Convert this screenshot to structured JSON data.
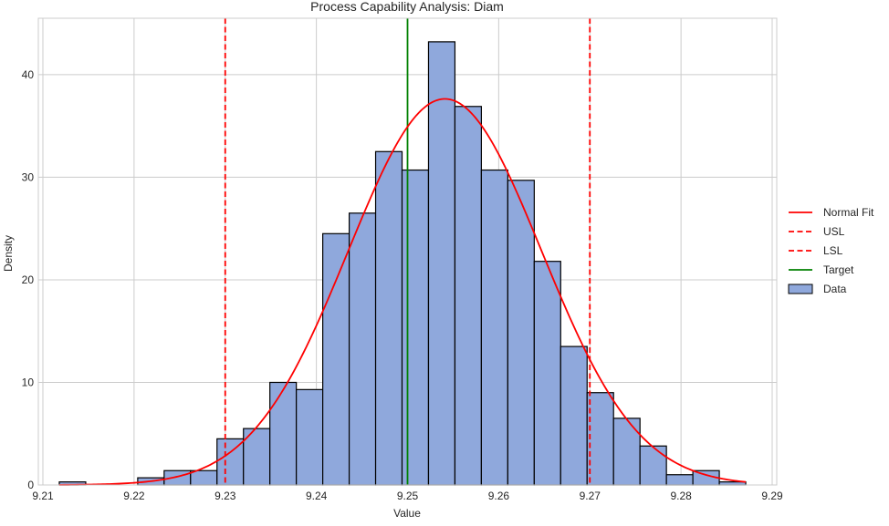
{
  "chart_data": {
    "type": "histogram",
    "title": "Process Capability Analysis: Diam",
    "xlabel": "Value",
    "ylabel": "Density",
    "xlim": [
      9.2095,
      9.2905
    ],
    "ylim": [
      0,
      45.5
    ],
    "xticks": [
      "9.21",
      "9.22",
      "9.23",
      "9.24",
      "9.25",
      "9.26",
      "9.27",
      "9.28",
      "9.29"
    ],
    "yticks": [
      "0",
      "10",
      "20",
      "30",
      "40"
    ],
    "grid": true,
    "legend_position": "right",
    "bins": [
      {
        "x0": 9.2118,
        "x1": 9.2147,
        "density": 0.3
      },
      {
        "x0": 9.2147,
        "x1": 9.2175,
        "density": 0
      },
      {
        "x0": 9.2175,
        "x1": 9.2204,
        "density": 0
      },
      {
        "x0": 9.2204,
        "x1": 9.2233,
        "density": 0.7
      },
      {
        "x0": 9.2233,
        "x1": 9.2262,
        "density": 1.4
      },
      {
        "x0": 9.2262,
        "x1": 9.2291,
        "density": 1.4
      },
      {
        "x0": 9.2291,
        "x1": 9.232,
        "density": 4.5
      },
      {
        "x0": 9.232,
        "x1": 9.2349,
        "density": 5.5
      },
      {
        "x0": 9.2349,
        "x1": 9.2378,
        "density": 10.0
      },
      {
        "x0": 9.2378,
        "x1": 9.2407,
        "density": 9.3
      },
      {
        "x0": 9.2407,
        "x1": 9.2436,
        "density": 24.5
      },
      {
        "x0": 9.2436,
        "x1": 9.2465,
        "density": 26.5
      },
      {
        "x0": 9.2465,
        "x1": 9.2494,
        "density": 32.5
      },
      {
        "x0": 9.2494,
        "x1": 9.2523,
        "density": 30.7
      },
      {
        "x0": 9.2523,
        "x1": 9.2552,
        "density": 43.2
      },
      {
        "x0": 9.2552,
        "x1": 9.2581,
        "density": 36.9
      },
      {
        "x0": 9.2581,
        "x1": 9.261,
        "density": 30.7
      },
      {
        "x0": 9.261,
        "x1": 9.2639,
        "density": 29.7
      },
      {
        "x0": 9.2639,
        "x1": 9.2668,
        "density": 21.8
      },
      {
        "x0": 9.2668,
        "x1": 9.2697,
        "density": 13.5
      },
      {
        "x0": 9.2697,
        "x1": 9.2726,
        "density": 9.0
      },
      {
        "x0": 9.2726,
        "x1": 9.2755,
        "density": 6.5
      },
      {
        "x0": 9.2755,
        "x1": 9.2784,
        "density": 3.8
      },
      {
        "x0": 9.2784,
        "x1": 9.2813,
        "density": 1.0
      },
      {
        "x0": 9.2813,
        "x1": 9.2842,
        "density": 1.4
      },
      {
        "x0": 9.2842,
        "x1": 9.2871,
        "density": 0.3
      }
    ],
    "normal_fit": {
      "mean": 9.2541,
      "std": 0.0106
    },
    "reference_lines": [
      {
        "name": "USL",
        "x": 9.23,
        "color": "#ff0000",
        "style": "dashed"
      },
      {
        "name": "LSL",
        "x": 9.27,
        "color": "#ff0000",
        "style": "dashed"
      },
      {
        "name": "Target",
        "x": 9.25,
        "color": "#008000",
        "style": "solid"
      }
    ],
    "legend": [
      {
        "label": "Normal Fit",
        "kind": "line",
        "color": "#ff0000",
        "dash": false
      },
      {
        "label": "USL",
        "kind": "line",
        "color": "#ff0000",
        "dash": true
      },
      {
        "label": "LSL",
        "kind": "line",
        "color": "#ff0000",
        "dash": true
      },
      {
        "label": "Target",
        "kind": "line",
        "color": "#008000",
        "dash": false
      },
      {
        "label": "Data",
        "kind": "patch",
        "color": "#8fa8dc"
      }
    ],
    "colors": {
      "bar_fill": "#8fa8dc",
      "bar_edge": "#000000",
      "fit": "#ff0000",
      "grid": "#cccccc",
      "frame": "#cccccc"
    }
  }
}
